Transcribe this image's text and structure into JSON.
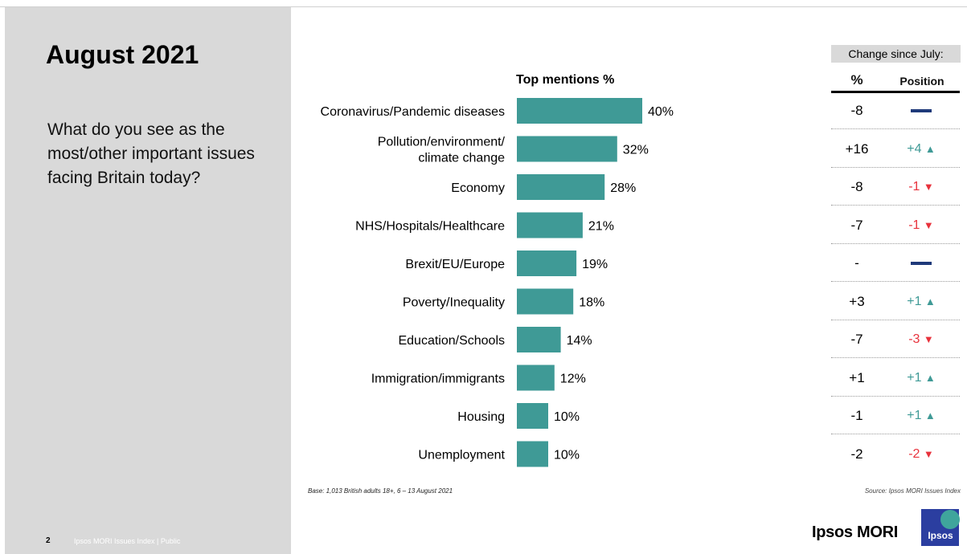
{
  "slide": {
    "title": "August 2021",
    "question": "What do you see as the most/other important issues facing Britain today?",
    "page_number": "2",
    "footer_text": "Ipsos MORI Issues Index | Public",
    "base_note": "Base: 1,013 British adults 18+, 6 – 13 August 2021",
    "source_note": "Source: Ipsos MORI Issues Index",
    "logo_text": "Ipsos MORI",
    "logo_square_text": "Ipsos"
  },
  "colors": {
    "bar": "#3f9a96",
    "up": "#3f9a96",
    "down": "#e8323c",
    "neutral": "#1f3a7a",
    "panel": "#d9d9d9"
  },
  "chart_data": {
    "type": "bar",
    "orientation": "horizontal",
    "title": "Top mentions %",
    "categories": [
      "Coronavirus/Pandemic diseases",
      "Pollution/environment/ climate change",
      "Economy",
      "NHS/Hospitals/Healthcare",
      "Brexit/EU/Europe",
      "Poverty/Inequality",
      "Education/Schools",
      "Immigration/immigrants",
      "Housing",
      "Unemployment"
    ],
    "category_lines": [
      [
        "Coronavirus/Pandemic diseases"
      ],
      [
        "Pollution/environment/",
        "climate change"
      ],
      [
        "Economy"
      ],
      [
        "NHS/Hospitals/Healthcare"
      ],
      [
        "Brexit/EU/Europe"
      ],
      [
        "Poverty/Inequality"
      ],
      [
        "Education/Schools"
      ],
      [
        "Immigration/immigrants"
      ],
      [
        "Housing"
      ],
      [
        "Unemployment"
      ]
    ],
    "values": [
      40,
      32,
      28,
      21,
      19,
      18,
      14,
      12,
      10,
      10
    ],
    "value_labels": [
      "40%",
      "32%",
      "28%",
      "21%",
      "19%",
      "18%",
      "14%",
      "12%",
      "10%",
      "10%"
    ],
    "xlim": [
      0,
      40
    ],
    "grid": false,
    "legend": "none"
  },
  "change_table": {
    "title": "Change since July:",
    "col_pct": "%",
    "col_position": "Position",
    "rows": [
      {
        "pct": "-8",
        "position": "",
        "direction": "none"
      },
      {
        "pct": "+16",
        "position": "+4",
        "direction": "up"
      },
      {
        "pct": "-8",
        "position": "-1",
        "direction": "down"
      },
      {
        "pct": "-7",
        "position": "-1",
        "direction": "down"
      },
      {
        "pct": "-",
        "position": "",
        "direction": "none"
      },
      {
        "pct": "+3",
        "position": "+1",
        "direction": "up"
      },
      {
        "pct": "-7",
        "position": "-3",
        "direction": "down"
      },
      {
        "pct": "+1",
        "position": "+1",
        "direction": "up"
      },
      {
        "pct": "-1",
        "position": "+1",
        "direction": "up"
      },
      {
        "pct": "-2",
        "position": "-2",
        "direction": "down"
      }
    ]
  }
}
